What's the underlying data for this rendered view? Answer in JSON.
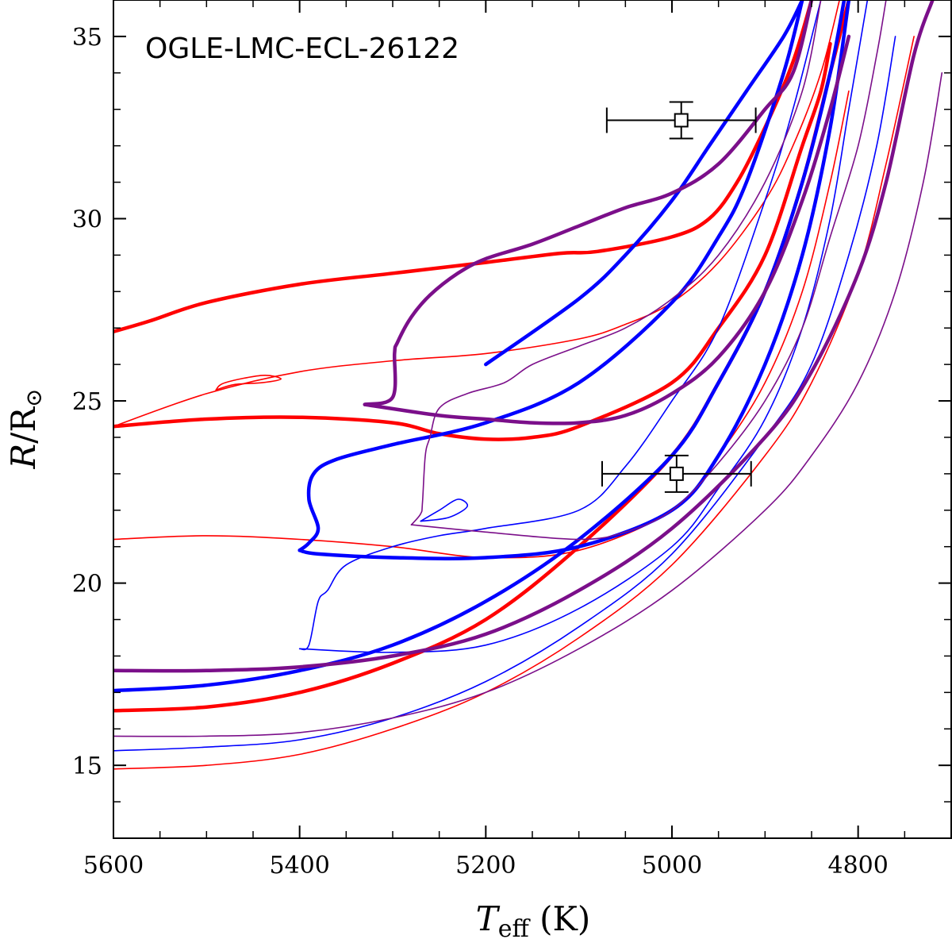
{
  "chart_data": {
    "type": "line",
    "title": "OGLE-LMC-ECL-26122",
    "xlabel": {
      "symbol": "T",
      "subscript": "eff",
      "unit": " (K)"
    },
    "ylabel": {
      "symbol": "R",
      "rest": "/R",
      "sun": "⊙"
    },
    "xlim": [
      5600,
      4700
    ],
    "ylim": [
      13,
      36
    ],
    "x_ticks": [
      5600,
      5400,
      5200,
      5000,
      4800
    ],
    "y_ticks": [
      15,
      20,
      25,
      30,
      35
    ],
    "x_minor_step": 50,
    "y_minor_step": 1,
    "colors": {
      "red": "#ff0000",
      "blue": "#0000ff",
      "purple": "#7b0f8a"
    },
    "observations": [
      {
        "name": "primary",
        "teff": 4990,
        "teff_err": 80,
        "radius": 32.7,
        "radius_err": 0.5
      },
      {
        "name": "secondary",
        "teff": 4995,
        "teff_err": 80,
        "radius": 23.0,
        "radius_err": 0.5
      }
    ],
    "series": [
      {
        "name": "red-thick-1",
        "color": "red",
        "width": 4.5,
        "points": [
          [
            5600,
            26.9
          ],
          [
            5560,
            27.2
          ],
          [
            5500,
            27.7
          ],
          [
            5400,
            28.2
          ],
          [
            5300,
            28.5
          ],
          [
            5200,
            28.8
          ],
          [
            5120,
            29.05
          ],
          [
            5080,
            29.1
          ],
          [
            5000,
            29.5
          ],
          [
            4960,
            30.0
          ],
          [
            4930,
            31.0
          ],
          [
            4900,
            32.5
          ],
          [
            4870,
            34.3
          ],
          [
            4850,
            36.0
          ]
        ]
      },
      {
        "name": "red-thick-2",
        "color": "red",
        "width": 4.5,
        "points": [
          [
            5600,
            24.3
          ],
          [
            5500,
            24.5
          ],
          [
            5400,
            24.55
          ],
          [
            5300,
            24.4
          ],
          [
            5250,
            24.1
          ],
          [
            5200,
            23.95
          ],
          [
            5150,
            24.0
          ],
          [
            5100,
            24.3
          ],
          [
            5000,
            25.5
          ],
          [
            4950,
            27.0
          ],
          [
            4900,
            29.0
          ],
          [
            4860,
            32.0
          ],
          [
            4840,
            33.5
          ],
          [
            4830,
            34.8
          ]
        ]
      },
      {
        "name": "red-thick-3",
        "color": "red",
        "width": 4.5,
        "points": [
          [
            5600,
            16.5
          ],
          [
            5500,
            16.6
          ],
          [
            5400,
            17.0
          ],
          [
            5300,
            17.8
          ],
          [
            5200,
            19.0
          ],
          [
            5100,
            21.0
          ],
          [
            5000,
            23.5
          ],
          [
            4950,
            25.5
          ],
          [
            4900,
            28.0
          ],
          [
            4860,
            31.0
          ],
          [
            4830,
            34.0
          ],
          [
            4810,
            36.0
          ]
        ]
      },
      {
        "name": "red-thin-1",
        "color": "red",
        "width": 1.6,
        "points": [
          [
            5600,
            24.3
          ],
          [
            5500,
            25.2
          ],
          [
            5400,
            25.8
          ],
          [
            5300,
            26.1
          ],
          [
            5200,
            26.3
          ],
          [
            5100,
            26.7
          ],
          [
            5050,
            27.1
          ],
          [
            5000,
            27.7
          ],
          [
            4950,
            28.8
          ],
          [
            4900,
            30.5
          ],
          [
            4870,
            32.0
          ],
          [
            4840,
            34.0
          ],
          [
            4820,
            36.0
          ]
        ]
      },
      {
        "name": "red-thin-2",
        "color": "red",
        "width": 1.6,
        "points": [
          [
            5600,
            21.2
          ],
          [
            5500,
            21.3
          ],
          [
            5400,
            21.2
          ],
          [
            5300,
            21.0
          ],
          [
            5200,
            20.7
          ],
          [
            5100,
            20.9
          ],
          [
            5000,
            22.0
          ],
          [
            4950,
            23.5
          ],
          [
            4900,
            25.5
          ],
          [
            4860,
            28.0
          ],
          [
            4830,
            31.0
          ],
          [
            4810,
            33.5
          ]
        ]
      },
      {
        "name": "red-thin-3",
        "color": "red",
        "width": 1.6,
        "points": [
          [
            5600,
            14.9
          ],
          [
            5500,
            15.0
          ],
          [
            5400,
            15.3
          ],
          [
            5300,
            16.0
          ],
          [
            5200,
            17.0
          ],
          [
            5100,
            18.5
          ],
          [
            5000,
            20.5
          ],
          [
            4900,
            23.5
          ],
          [
            4850,
            25.5
          ],
          [
            4800,
            28.5
          ],
          [
            4770,
            31.5
          ],
          [
            4740,
            35.0
          ]
        ]
      },
      {
        "name": "red-thin-loop",
        "color": "red",
        "width": 1.6,
        "points": [
          [
            5490,
            25.3
          ],
          [
            5470,
            25.45
          ],
          [
            5440,
            25.5
          ],
          [
            5420,
            25.6
          ],
          [
            5440,
            25.7
          ],
          [
            5480,
            25.5
          ],
          [
            5490,
            25.3
          ]
        ]
      },
      {
        "name": "blue-thick-1",
        "color": "blue",
        "width": 4.5,
        "points": [
          [
            5400,
            20.9
          ],
          [
            5380,
            20.8
          ],
          [
            5300,
            20.7
          ],
          [
            5200,
            20.7
          ],
          [
            5100,
            21.0
          ],
          [
            5000,
            22.0
          ],
          [
            4950,
            23.5
          ],
          [
            4900,
            26.0
          ],
          [
            4860,
            29.0
          ],
          [
            4830,
            32.5
          ],
          [
            4810,
            36.0
          ]
        ]
      },
      {
        "name": "blue-thick-2",
        "color": "blue",
        "width": 4.5,
        "points": [
          [
            5400,
            20.9
          ],
          [
            5390,
            21.1
          ],
          [
            5380,
            21.5
          ],
          [
            5390,
            22.3
          ],
          [
            5385,
            23.0
          ],
          [
            5360,
            23.4
          ],
          [
            5300,
            23.8
          ],
          [
            5200,
            24.4
          ],
          [
            5100,
            25.5
          ],
          [
            5000,
            27.7
          ],
          [
            4950,
            29.5
          ],
          [
            4920,
            31.0
          ],
          [
            4880,
            34.0
          ],
          [
            4860,
            36.0
          ]
        ]
      },
      {
        "name": "blue-thick-3",
        "color": "blue",
        "width": 4.5,
        "points": [
          [
            5600,
            17.05
          ],
          [
            5500,
            17.2
          ],
          [
            5400,
            17.6
          ],
          [
            5300,
            18.3
          ],
          [
            5200,
            19.5
          ],
          [
            5100,
            21.2
          ],
          [
            5000,
            23.5
          ],
          [
            4950,
            25.5
          ],
          [
            4900,
            28.0
          ],
          [
            4860,
            31.0
          ],
          [
            4830,
            34.0
          ],
          [
            4815,
            36.0
          ]
        ]
      },
      {
        "name": "blue-thick-4",
        "color": "blue",
        "width": 4.5,
        "points": [
          [
            5200,
            26.0
          ],
          [
            5100,
            27.8
          ],
          [
            5050,
            29.0
          ],
          [
            5000,
            30.5
          ],
          [
            4960,
            32.0
          ],
          [
            4920,
            33.5
          ],
          [
            4880,
            35.0
          ],
          [
            4860,
            36.0
          ]
        ]
      },
      {
        "name": "blue-thin-1",
        "color": "blue",
        "width": 1.6,
        "points": [
          [
            5400,
            18.2
          ],
          [
            5390,
            18.3
          ],
          [
            5380,
            19.5
          ],
          [
            5370,
            19.8
          ],
          [
            5350,
            20.5
          ],
          [
            5300,
            21.0
          ],
          [
            5250,
            21.3
          ],
          [
            5200,
            21.5
          ],
          [
            5100,
            22.0
          ],
          [
            5050,
            23.2
          ],
          [
            5000,
            25.0
          ],
          [
            4950,
            27.0
          ],
          [
            4900,
            30.5
          ],
          [
            4870,
            33.0
          ],
          [
            4840,
            36.0
          ]
        ]
      },
      {
        "name": "blue-thin-2",
        "color": "blue",
        "width": 1.6,
        "points": [
          [
            5400,
            18.2
          ],
          [
            5300,
            18.1
          ],
          [
            5200,
            18.3
          ],
          [
            5100,
            19.3
          ],
          [
            5000,
            21.0
          ],
          [
            4950,
            22.6
          ],
          [
            4900,
            24.5
          ],
          [
            4860,
            27.0
          ],
          [
            4830,
            30.0
          ],
          [
            4810,
            33.0
          ],
          [
            4790,
            36.0
          ]
        ]
      },
      {
        "name": "blue-thin-3",
        "color": "blue",
        "width": 1.6,
        "points": [
          [
            5600,
            15.4
          ],
          [
            5500,
            15.5
          ],
          [
            5400,
            15.7
          ],
          [
            5300,
            16.3
          ],
          [
            5200,
            17.3
          ],
          [
            5100,
            18.8
          ],
          [
            5000,
            20.8
          ],
          [
            4900,
            24.0
          ],
          [
            4850,
            26.0
          ],
          [
            4810,
            29.0
          ],
          [
            4780,
            32.0
          ],
          [
            4760,
            35.0
          ]
        ]
      },
      {
        "name": "blue-thin-loop",
        "color": "blue",
        "width": 1.6,
        "points": [
          [
            5270,
            21.7
          ],
          [
            5250,
            22.0
          ],
          [
            5230,
            22.3
          ],
          [
            5220,
            22.1
          ],
          [
            5240,
            21.8
          ],
          [
            5270,
            21.7
          ]
        ]
      },
      {
        "name": "purple-thick-1",
        "color": "purple",
        "width": 4.5,
        "points": [
          [
            5330,
            24.9
          ],
          [
            5300,
            25.1
          ],
          [
            5298,
            26.3
          ],
          [
            5295,
            26.6
          ],
          [
            5280,
            27.3
          ],
          [
            5260,
            27.9
          ],
          [
            5230,
            28.5
          ],
          [
            5200,
            28.9
          ],
          [
            5150,
            29.3
          ],
          [
            5100,
            29.8
          ],
          [
            5050,
            30.3
          ],
          [
            5000,
            30.7
          ],
          [
            4950,
            31.5
          ],
          [
            4900,
            33.0
          ],
          [
            4870,
            34.0
          ],
          [
            4850,
            36.0
          ]
        ]
      },
      {
        "name": "purple-thick-2",
        "color": "purple",
        "width": 4.5,
        "points": [
          [
            5330,
            24.9
          ],
          [
            5250,
            24.6
          ],
          [
            5200,
            24.5
          ],
          [
            5150,
            24.4
          ],
          [
            5100,
            24.4
          ],
          [
            5050,
            24.6
          ],
          [
            5000,
            25.2
          ],
          [
            4950,
            26.2
          ],
          [
            4900,
            28.0
          ],
          [
            4860,
            30.5
          ],
          [
            4830,
            33.0
          ],
          [
            4810,
            35.0
          ]
        ]
      },
      {
        "name": "purple-thick-3",
        "color": "purple",
        "width": 4.5,
        "points": [
          [
            5600,
            17.6
          ],
          [
            5500,
            17.6
          ],
          [
            5400,
            17.7
          ],
          [
            5300,
            18.0
          ],
          [
            5200,
            18.6
          ],
          [
            5100,
            19.8
          ],
          [
            5000,
            21.5
          ],
          [
            4900,
            24.0
          ],
          [
            4850,
            25.8
          ],
          [
            4800,
            28.5
          ],
          [
            4770,
            31.0
          ],
          [
            4740,
            34.5
          ],
          [
            4720,
            36.0
          ]
        ]
      },
      {
        "name": "purple-thin-1",
        "color": "purple",
        "width": 1.6,
        "points": [
          [
            5280,
            21.6
          ],
          [
            5270,
            21.9
          ],
          [
            5268,
            22.2
          ],
          [
            5265,
            23.5
          ],
          [
            5260,
            24.0
          ],
          [
            5250,
            24.8
          ],
          [
            5220,
            25.2
          ],
          [
            5180,
            25.5
          ],
          [
            5150,
            26.0
          ],
          [
            5100,
            26.5
          ],
          [
            5050,
            27.0
          ],
          [
            5000,
            27.8
          ],
          [
            4950,
            29.0
          ],
          [
            4900,
            31.0
          ],
          [
            4860,
            33.5
          ],
          [
            4840,
            36.0
          ]
        ]
      },
      {
        "name": "purple-thin-2",
        "color": "purple",
        "width": 1.6,
        "points": [
          [
            5280,
            21.6
          ],
          [
            5200,
            21.4
          ],
          [
            5100,
            21.2
          ],
          [
            5050,
            21.4
          ],
          [
            5000,
            22.0
          ],
          [
            4950,
            23.3
          ],
          [
            4900,
            25.0
          ],
          [
            4860,
            27.0
          ],
          [
            4830,
            29.5
          ],
          [
            4800,
            32.0
          ],
          [
            4780,
            34.5
          ],
          [
            4770,
            36.0
          ]
        ]
      },
      {
        "name": "purple-thin-3",
        "color": "purple",
        "width": 1.6,
        "points": [
          [
            5600,
            15.8
          ],
          [
            5500,
            15.8
          ],
          [
            5400,
            15.9
          ],
          [
            5300,
            16.3
          ],
          [
            5200,
            17.0
          ],
          [
            5100,
            18.2
          ],
          [
            5000,
            19.8
          ],
          [
            4900,
            22.0
          ],
          [
            4850,
            23.5
          ],
          [
            4800,
            25.5
          ],
          [
            4760,
            28.0
          ],
          [
            4730,
            31.0
          ],
          [
            4710,
            34.0
          ]
        ]
      }
    ]
  }
}
